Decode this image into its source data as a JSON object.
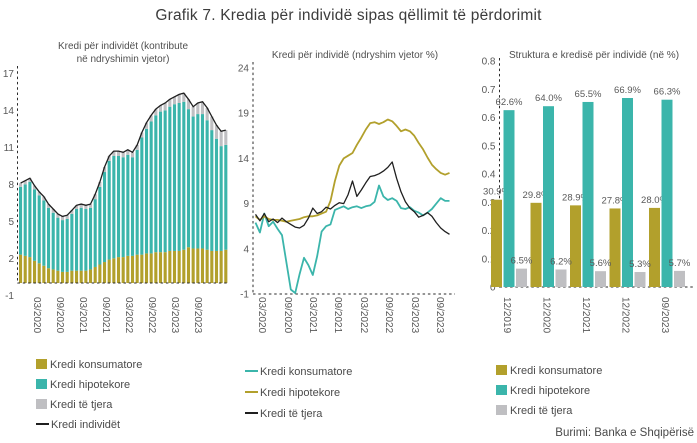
{
  "page": {
    "title": "Grafik 7. Kredia për individë sipas qëllimit të përdorimit",
    "source": "Burimi: Banka e Shqipërisë"
  },
  "colors": {
    "consumer_gold": "#b2a02c",
    "mortgage_teal": "#3bb5ab",
    "other_gray": "#bfbfc2",
    "total_black": "#1f1f1f",
    "axis_dash": "#2b2b2b",
    "tick_text": "#595959",
    "value_label_text": "#4d4d4d"
  },
  "chart_data": [
    {
      "type": "bar",
      "subtype": "stacked-bars-with-line",
      "title": "Kredi për individët (kontribute\nnë ndryshimin vjetor)",
      "ylim": [
        -1,
        17
      ],
      "yticks": [
        17,
        14,
        11,
        8,
        5,
        2,
        -1
      ],
      "x_tick_labels": [
        "03/2020",
        "09/2020",
        "03/2021",
        "09/2021",
        "03/2022",
        "09/2022",
        "03/2023",
        "09/2023"
      ],
      "x_monthly_start": "01/2020",
      "series": [
        {
          "name": "Kredi konsumatore",
          "type": "bar",
          "color": "#b2a02c",
          "values": [
            2.3,
            2.2,
            2.1,
            1.8,
            1.6,
            1.4,
            1.2,
            1.1,
            1.0,
            0.9,
            0.9,
            1.0,
            1.0,
            1.0,
            1.0,
            1.1,
            1.3,
            1.5,
            1.7,
            1.9,
            2.0,
            2.1,
            2.1,
            2.2,
            2.2,
            2.3,
            2.3,
            2.4,
            2.4,
            2.5,
            2.5,
            2.5,
            2.6,
            2.6,
            2.6,
            2.7,
            2.9,
            2.8,
            2.8,
            2.8,
            2.7,
            2.6,
            2.6,
            2.6,
            2.7
          ]
        },
        {
          "name": "Kredi hipotekore",
          "type": "bar",
          "color": "#3bb5ab",
          "values": [
            5.5,
            5.8,
            6.1,
            5.8,
            5.5,
            5.3,
            4.9,
            4.6,
            4.3,
            4.2,
            4.3,
            4.6,
            5.0,
            5.1,
            5.0,
            5.0,
            5.5,
            6.3,
            7.3,
            8.0,
            8.3,
            8.2,
            8.1,
            8.2,
            8.0,
            8.5,
            9.5,
            10.1,
            10.7,
            11.1,
            11.4,
            11.5,
            11.7,
            11.9,
            12.0,
            12.0,
            11.2,
            10.7,
            10.9,
            10.9,
            10.5,
            9.8,
            9.1,
            8.5,
            8.5
          ]
        },
        {
          "name": "Kredi të tjera",
          "type": "bar",
          "color": "#bfbfc2",
          "values": [
            0.3,
            0.3,
            0.3,
            0.3,
            0.3,
            0.3,
            0.3,
            0.3,
            0.3,
            0.3,
            0.3,
            0.3,
            0.3,
            0.3,
            0.3,
            0.3,
            0.4,
            0.4,
            0.4,
            0.4,
            0.4,
            0.4,
            0.4,
            0.4,
            0.4,
            0.4,
            0.4,
            0.5,
            0.5,
            0.5,
            0.5,
            0.6,
            0.6,
            0.6,
            0.7,
            0.7,
            0.8,
            0.8,
            0.9,
            1.0,
            1.0,
            1.1,
            1.1,
            1.2,
            1.2
          ]
        },
        {
          "name": "Kredi individët",
          "type": "line",
          "color": "#1f1f1f",
          "values": [
            8.1,
            8.3,
            8.5,
            7.9,
            7.4,
            7.0,
            6.4,
            6.0,
            5.6,
            5.4,
            5.5,
            5.9,
            6.3,
            6.4,
            6.3,
            6.4,
            7.2,
            8.2,
            9.4,
            10.3,
            10.7,
            10.7,
            10.6,
            10.8,
            10.6,
            11.2,
            12.2,
            13.0,
            13.6,
            14.1,
            14.4,
            14.6,
            14.9,
            15.1,
            15.3,
            15.4,
            14.9,
            14.3,
            14.6,
            14.7,
            14.2,
            13.5,
            12.8,
            12.3,
            12.4
          ]
        }
      ]
    },
    {
      "type": "line",
      "title": "Kredi për individë (ndryshim vjetor %)",
      "ylim": [
        -1,
        24
      ],
      "yticks": [
        24,
        19,
        14,
        9,
        4,
        -1
      ],
      "x_tick_labels": [
        "03/2020",
        "09/2020",
        "03/2021",
        "09/2021",
        "03/2022",
        "09/2022",
        "03/2023",
        "09/2023"
      ],
      "x_monthly_start": "01/2020",
      "series": [
        {
          "name": "Kredi konsumatore",
          "type": "line",
          "color": "#3bb5ab",
          "values": [
            6.9,
            5.8,
            7.9,
            6.5,
            7.0,
            6.2,
            5.5,
            2.5,
            -0.5,
            -0.9,
            1.2,
            3.0,
            2.2,
            1.1,
            3.2,
            5.9,
            6.5,
            6.7,
            8.3,
            8.5,
            8.7,
            8.4,
            8.6,
            8.7,
            8.5,
            8.7,
            8.8,
            9.2,
            11.0,
            9.8,
            9.4,
            9.6,
            9.3,
            8.5,
            8.4,
            8.6,
            8.2,
            8.0,
            7.7,
            8.0,
            8.4,
            9.0,
            9.6,
            9.3,
            9.3
          ]
        },
        {
          "name": "Kredi hipotekore",
          "type": "line",
          "color": "#b2a02c",
          "values": [
            7.6,
            7.2,
            7.6,
            7.3,
            7.2,
            7.2,
            7.1,
            7.0,
            7.1,
            7.2,
            7.3,
            7.5,
            7.6,
            7.6,
            7.7,
            7.9,
            8.1,
            9.3,
            11.5,
            13.2,
            14.0,
            14.3,
            14.6,
            15.5,
            16.3,
            17.2,
            17.9,
            18.0,
            17.8,
            18.0,
            18.3,
            18.1,
            17.6,
            17.0,
            17.2,
            17.0,
            16.5,
            15.7,
            15.0,
            14.1,
            13.3,
            12.8,
            12.4,
            12.2,
            12.4
          ]
        },
        {
          "name": "Kredi të tjera",
          "type": "line",
          "color": "#1f1f1f",
          "values": [
            7.8,
            7.1,
            7.9,
            7.0,
            7.3,
            6.9,
            7.4,
            7.0,
            6.7,
            6.4,
            6.3,
            6.6,
            7.4,
            8.5,
            7.9,
            8.1,
            8.6,
            8.4,
            8.8,
            9.1,
            9.0,
            10.0,
            11.5,
            9.8,
            10.5,
            11.3,
            12.0,
            12.1,
            12.3,
            12.6,
            13.0,
            13.6,
            11.8,
            10.3,
            9.2,
            8.5,
            8.1,
            7.5,
            7.7,
            8.0,
            7.6,
            6.9,
            6.3,
            5.9,
            5.6
          ]
        }
      ]
    },
    {
      "type": "bar",
      "subtype": "grouped-bars",
      "title": "Struktura e kredisë për individë (në %)",
      "ylim": [
        0,
        0.8
      ],
      "yticks": [
        0.8,
        0.7,
        0.6,
        0.5,
        0.4,
        0.3,
        0.2,
        0.1,
        0
      ],
      "ytick_labels": [
        "0.8",
        "0.7",
        "0.6",
        "0.5",
        "0.4",
        "0.3",
        "0.2",
        "0.1",
        "0"
      ],
      "categories": [
        "12/2019",
        "12/2020",
        "12/2021",
        "12/2022",
        "09/2023"
      ],
      "series": [
        {
          "name": "Kredi konsumatore",
          "color": "#b2a02c",
          "values": [
            30.9,
            29.8,
            28.9,
            27.8,
            28.0
          ],
          "labels": [
            "30.9%",
            "29.8%",
            "28.9%",
            "27.8%",
            "28.0%"
          ]
        },
        {
          "name": "Kredi hipotekore",
          "color": "#3bb5ab",
          "values": [
            62.6,
            64.0,
            65.5,
            66.9,
            66.3
          ],
          "labels": [
            "62.6%",
            "64.0%",
            "65.5%",
            "66.9%",
            "66.3%"
          ]
        },
        {
          "name": "Kredi të tjera",
          "color": "#bfbfc2",
          "values": [
            6.5,
            6.2,
            5.6,
            5.3,
            5.7
          ],
          "labels": [
            "6.5%",
            "6.2%",
            "5.6%",
            "5.3%",
            "5.7%"
          ]
        }
      ]
    }
  ],
  "legends": {
    "left": [
      {
        "label": "Kredi konsumatore",
        "marker": "square",
        "color": "#b2a02c"
      },
      {
        "label": "Kredi hipotekore",
        "marker": "square",
        "color": "#3bb5ab"
      },
      {
        "label": "Kredi të tjera",
        "marker": "square",
        "color": "#bfbfc2"
      },
      {
        "label": "Kredi individët",
        "marker": "line",
        "color": "#1f1f1f"
      }
    ],
    "middle": [
      {
        "label": "Kredi konsumatore",
        "marker": "line",
        "color": "#3bb5ab"
      },
      {
        "label": "Kredi hipotekore",
        "marker": "line",
        "color": "#b2a02c"
      },
      {
        "label": "Kredi të tjera",
        "marker": "line",
        "color": "#1f1f1f"
      }
    ],
    "right": [
      {
        "label": "Kredi konsumatore",
        "marker": "square",
        "color": "#b2a02c"
      },
      {
        "label": "Kredi hipotekore",
        "marker": "square",
        "color": "#3bb5ab"
      },
      {
        "label": "Kredi të tjera",
        "marker": "square",
        "color": "#bfbfc2"
      }
    ]
  }
}
